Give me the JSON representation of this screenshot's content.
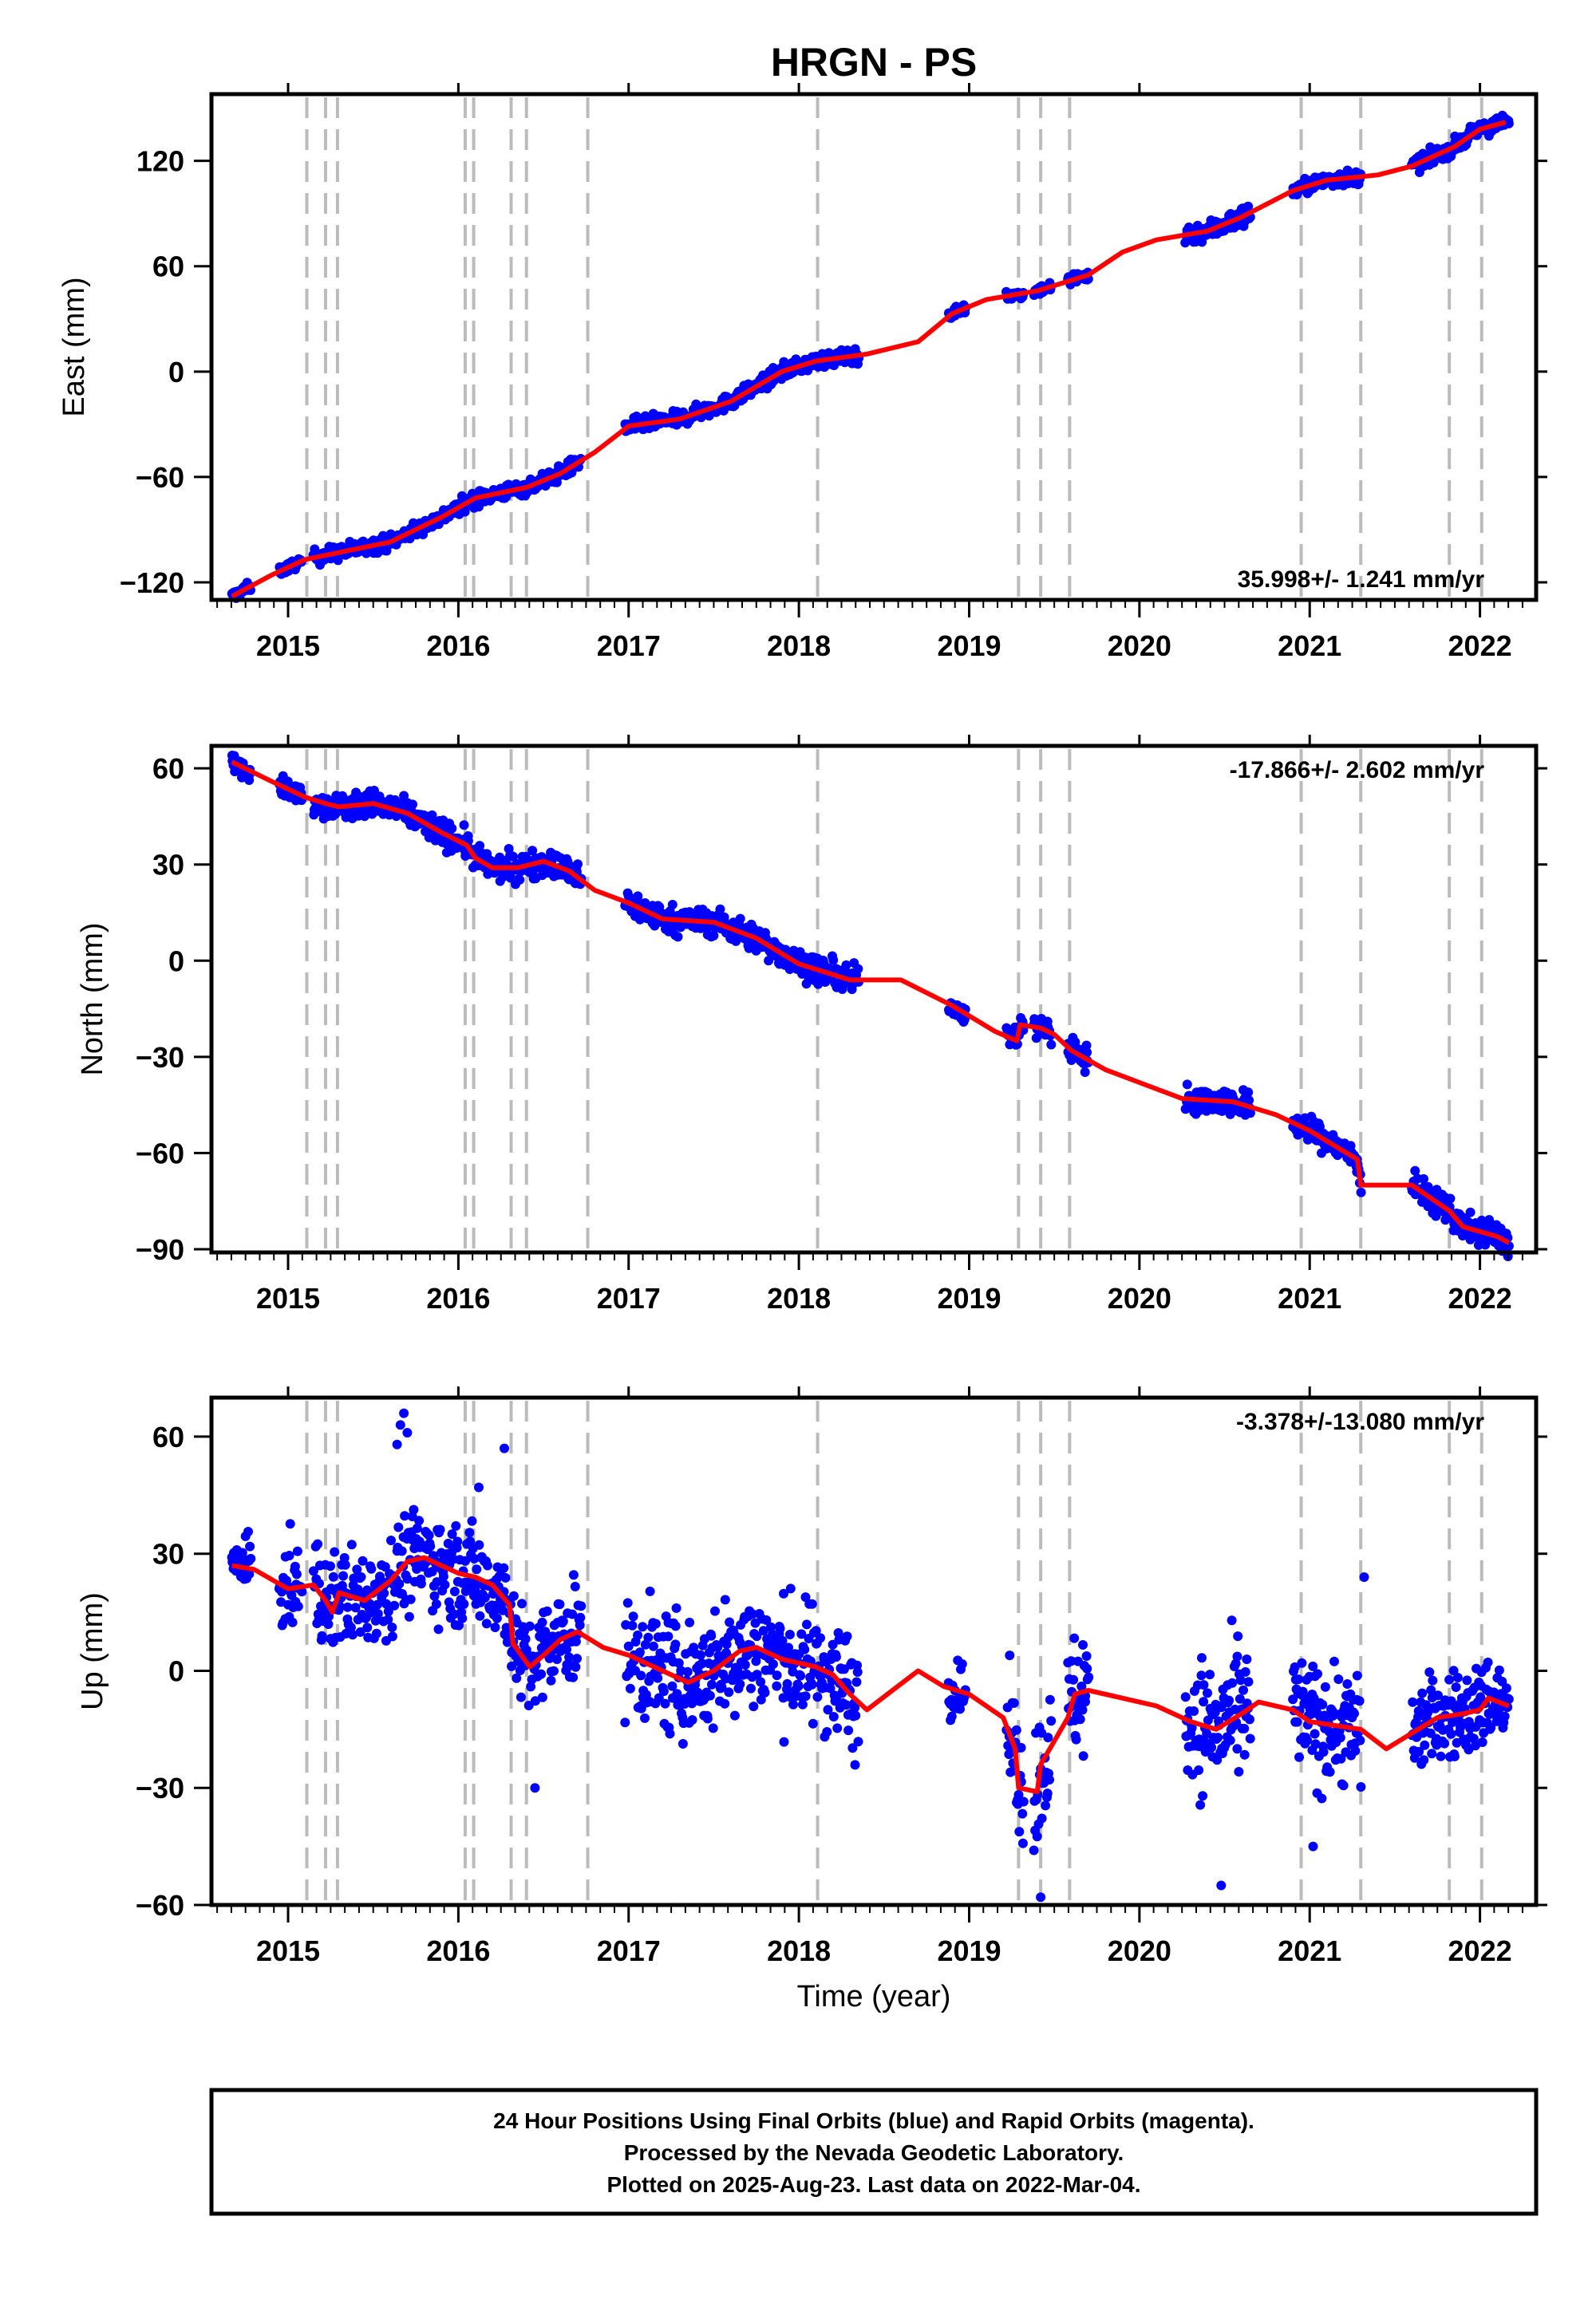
{
  "title": "HRGN - PS",
  "xlabel": "Time (year)",
  "footer": {
    "line1": "24 Hour Positions Using Final Orbits (blue) and Rapid Orbits (magenta).",
    "line2": "Processed by the Nevada Geodetic Laboratory.",
    "line3": "Plotted on 2025-Aug-23. Last data on 2022-Mar-04."
  },
  "colors": {
    "data": "#0000ff",
    "model": "#ff0000",
    "event": "#bbbbbb",
    "frame": "#000000"
  },
  "chart_data": {
    "type": "scatter",
    "xlim": [
      2014.55,
      2022.33
    ],
    "x_ticks": [
      2015,
      2016,
      2017,
      2018,
      2019,
      2020,
      2021,
      2022
    ],
    "event_lines": [
      2015.11,
      2015.22,
      2015.29,
      2016.04,
      2016.09,
      2016.31,
      2016.4,
      2016.76,
      2018.11,
      2019.29,
      2019.42,
      2019.59,
      2020.95,
      2021.3,
      2021.82,
      2022.01
    ],
    "panels": [
      {
        "ylabel": "East (mm)",
        "ylim": [
          -130,
          158
        ],
        "yticks": [
          -120,
          -60,
          0,
          60,
          120
        ],
        "rate": "35.998+/- 1.241 mm/yr",
        "rate_position": "bottom-right",
        "model_line": [
          [
            2014.67,
            -128
          ],
          [
            2014.9,
            -116
          ],
          [
            2015.1,
            -107
          ],
          [
            2015.3,
            -103
          ],
          [
            2015.6,
            -97
          ],
          [
            2015.9,
            -83
          ],
          [
            2016.1,
            -72
          ],
          [
            2016.4,
            -66
          ],
          [
            2016.6,
            -58
          ],
          [
            2016.8,
            -46
          ],
          [
            2017.0,
            -31
          ],
          [
            2017.3,
            -27
          ],
          [
            2017.6,
            -17
          ],
          [
            2017.9,
            0
          ],
          [
            2018.1,
            6
          ],
          [
            2018.4,
            10
          ],
          [
            2018.7,
            17
          ],
          [
            2018.9,
            33
          ],
          [
            2019.1,
            41
          ],
          [
            2019.4,
            46
          ],
          [
            2019.7,
            55
          ],
          [
            2019.9,
            68
          ],
          [
            2020.1,
            75
          ],
          [
            2020.4,
            80
          ],
          [
            2020.6,
            88
          ],
          [
            2020.9,
            103
          ],
          [
            2021.1,
            109
          ],
          [
            2021.4,
            112
          ],
          [
            2021.6,
            117
          ],
          [
            2021.85,
            128
          ],
          [
            2022.0,
            138
          ],
          [
            2022.15,
            142
          ]
        ],
        "data_segments": [
          {
            "x0": 2014.67,
            "x1": 2014.78,
            "amp": 2
          },
          {
            "x0": 2014.95,
            "x1": 2015.08,
            "amp": 2
          },
          {
            "x0": 2015.15,
            "x1": 2016.72,
            "amp": 3
          },
          {
            "x0": 2016.98,
            "x1": 2018.35,
            "amp": 3
          },
          {
            "x0": 2018.88,
            "x1": 2018.98,
            "amp": 2
          },
          {
            "x0": 2019.22,
            "x1": 2019.32,
            "amp": 2
          },
          {
            "x0": 2019.38,
            "x1": 2019.48,
            "amp": 2
          },
          {
            "x0": 2019.58,
            "x1": 2019.7,
            "amp": 3
          },
          {
            "x0": 2020.27,
            "x1": 2020.65,
            "amp": 4
          },
          {
            "x0": 2020.9,
            "x1": 2021.3,
            "amp": 3
          },
          {
            "x0": 2021.6,
            "x1": 2022.17,
            "amp": 3
          }
        ]
      },
      {
        "ylabel": "North (mm)",
        "ylim": [
          -91,
          67
        ],
        "yticks": [
          -90,
          -60,
          -30,
          0,
          30,
          60
        ],
        "rate": "-17.866+/- 2.602 mm/yr",
        "rate_position": "top-right",
        "model_line": [
          [
            2014.67,
            62
          ],
          [
            2014.9,
            56
          ],
          [
            2015.1,
            51
          ],
          [
            2015.22,
            49
          ],
          [
            2015.3,
            48
          ],
          [
            2015.5,
            49
          ],
          [
            2015.7,
            46
          ],
          [
            2015.9,
            40
          ],
          [
            2016.05,
            36
          ],
          [
            2016.1,
            32
          ],
          [
            2016.2,
            29
          ],
          [
            2016.35,
            29
          ],
          [
            2016.5,
            31
          ],
          [
            2016.65,
            28
          ],
          [
            2016.8,
            22
          ],
          [
            2017.0,
            18
          ],
          [
            2017.2,
            13
          ],
          [
            2017.5,
            12
          ],
          [
            2017.75,
            7
          ],
          [
            2018.0,
            -1
          ],
          [
            2018.3,
            -6
          ],
          [
            2018.6,
            -6
          ],
          [
            2018.9,
            -14
          ],
          [
            2019.15,
            -22
          ],
          [
            2019.28,
            -25
          ],
          [
            2019.3,
            -20
          ],
          [
            2019.42,
            -21
          ],
          [
            2019.5,
            -23
          ],
          [
            2019.6,
            -28
          ],
          [
            2019.8,
            -34
          ],
          [
            2020.0,
            -38
          ],
          [
            2020.25,
            -43
          ],
          [
            2020.55,
            -44
          ],
          [
            2020.8,
            -48
          ],
          [
            2021.0,
            -53
          ],
          [
            2021.28,
            -62
          ],
          [
            2021.3,
            -70
          ],
          [
            2021.6,
            -70
          ],
          [
            2021.82,
            -78
          ],
          [
            2021.9,
            -83
          ],
          [
            2022.1,
            -86
          ],
          [
            2022.17,
            -88
          ]
        ],
        "data_segments": [
          {
            "x0": 2014.67,
            "x1": 2014.78,
            "amp": 2
          },
          {
            "x0": 2014.95,
            "x1": 2015.08,
            "amp": 2
          },
          {
            "x0": 2015.15,
            "x1": 2016.72,
            "amp": 3
          },
          {
            "x0": 2016.98,
            "x1": 2018.35,
            "amp": 3
          },
          {
            "x0": 2018.88,
            "x1": 2018.98,
            "amp": 2
          },
          {
            "x0": 2019.22,
            "x1": 2019.32,
            "amp": 2
          },
          {
            "x0": 2019.38,
            "x1": 2019.48,
            "amp": 3
          },
          {
            "x0": 2019.58,
            "x1": 2019.7,
            "amp": 3
          },
          {
            "x0": 2020.27,
            "x1": 2020.65,
            "amp": 3
          },
          {
            "x0": 2020.9,
            "x1": 2021.3,
            "amp": 3
          },
          {
            "x0": 2021.6,
            "x1": 2022.17,
            "amp": 3
          }
        ]
      },
      {
        "ylabel": "Up (mm)",
        "ylim": [
          -60,
          70
        ],
        "yticks": [
          -60,
          -30,
          0,
          30,
          60
        ],
        "rate": "-3.378+/-13.080 mm/yr",
        "rate_position": "top-right",
        "model_line": [
          [
            2014.67,
            27
          ],
          [
            2014.8,
            26
          ],
          [
            2015.0,
            21
          ],
          [
            2015.15,
            22
          ],
          [
            2015.22,
            18
          ],
          [
            2015.26,
            15
          ],
          [
            2015.3,
            20
          ],
          [
            2015.45,
            18
          ],
          [
            2015.6,
            23
          ],
          [
            2015.7,
            28
          ],
          [
            2015.8,
            29
          ],
          [
            2016.0,
            25
          ],
          [
            2016.1,
            24
          ],
          [
            2016.2,
            22
          ],
          [
            2016.3,
            17
          ],
          [
            2016.32,
            7
          ],
          [
            2016.42,
            1
          ],
          [
            2016.5,
            4
          ],
          [
            2016.6,
            8
          ],
          [
            2016.7,
            10
          ],
          [
            2016.85,
            6
          ],
          [
            2017.0,
            4
          ],
          [
            2017.2,
            0
          ],
          [
            2017.35,
            -3
          ],
          [
            2017.5,
            0
          ],
          [
            2017.65,
            5
          ],
          [
            2017.75,
            6
          ],
          [
            2017.9,
            3
          ],
          [
            2018.1,
            1
          ],
          [
            2018.2,
            -1
          ],
          [
            2018.3,
            -6
          ],
          [
            2018.4,
            -10
          ],
          [
            2018.55,
            -5
          ],
          [
            2018.7,
            0
          ],
          [
            2018.85,
            -4
          ],
          [
            2019.0,
            -6
          ],
          [
            2019.2,
            -12
          ],
          [
            2019.27,
            -20
          ],
          [
            2019.29,
            -30
          ],
          [
            2019.4,
            -31
          ],
          [
            2019.42,
            -24
          ],
          [
            2019.5,
            -18
          ],
          [
            2019.58,
            -12
          ],
          [
            2019.62,
            -6
          ],
          [
            2019.7,
            -5
          ],
          [
            2019.9,
            -7
          ],
          [
            2020.1,
            -9
          ],
          [
            2020.3,
            -13
          ],
          [
            2020.45,
            -15
          ],
          [
            2020.6,
            -11
          ],
          [
            2020.7,
            -8
          ],
          [
            2020.9,
            -10
          ],
          [
            2021.0,
            -13
          ],
          [
            2021.15,
            -14
          ],
          [
            2021.3,
            -15
          ],
          [
            2021.45,
            -20
          ],
          [
            2021.6,
            -16
          ],
          [
            2021.75,
            -12
          ],
          [
            2021.9,
            -11
          ],
          [
            2022.0,
            -10
          ],
          [
            2022.05,
            -7
          ],
          [
            2022.17,
            -9
          ]
        ],
        "data_segments": [
          {
            "x0": 2014.67,
            "x1": 2014.78,
            "amp": 5
          },
          {
            "x0": 2014.95,
            "x1": 2015.08,
            "amp": 8
          },
          {
            "x0": 2015.15,
            "x1": 2016.72,
            "amp": 9
          },
          {
            "x0": 2016.98,
            "x1": 2018.35,
            "amp": 11
          },
          {
            "x0": 2018.88,
            "x1": 2018.98,
            "amp": 5
          },
          {
            "x0": 2019.22,
            "x1": 2019.32,
            "amp": 10
          },
          {
            "x0": 2019.38,
            "x1": 2019.48,
            "amp": 12
          },
          {
            "x0": 2019.58,
            "x1": 2019.7,
            "amp": 12
          },
          {
            "x0": 2020.27,
            "x1": 2020.65,
            "amp": 12
          },
          {
            "x0": 2020.9,
            "x1": 2021.3,
            "amp": 11
          },
          {
            "x0": 2021.6,
            "x1": 2022.17,
            "amp": 8
          }
        ],
        "outliers": [
          [
            2015.66,
            63
          ],
          [
            2015.68,
            66
          ],
          [
            2015.64,
            58
          ],
          [
            2015.7,
            61
          ],
          [
            2016.27,
            57
          ],
          [
            2016.12,
            47
          ],
          [
            2016.45,
            -30
          ],
          [
            2020.48,
            -55
          ],
          [
            2021.32,
            24
          ],
          [
            2019.42,
            -58
          ],
          [
            2021.02,
            -45
          ]
        ]
      }
    ]
  }
}
